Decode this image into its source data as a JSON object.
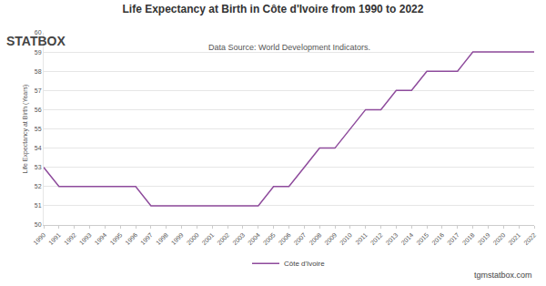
{
  "chart_data": {
    "type": "line",
    "title": "Life Expectancy at Birth in Côte d'Ivoire from 1990 to 2022",
    "subtitle": "Data Source: World Development Indicators.",
    "y_label": "Life Expectancy at Birth (Years)",
    "annotations": [
      "STATBOX",
      "tgmstatbox.com"
    ],
    "x": [
      1990,
      1991,
      1992,
      1993,
      1994,
      1995,
      1996,
      1997,
      1998,
      1999,
      2000,
      2001,
      2002,
      2003,
      2004,
      2005,
      2006,
      2007,
      2008,
      2009,
      2010,
      2011,
      2012,
      2013,
      2014,
      2015,
      2016,
      2017,
      2018,
      2019,
      2020,
      2021,
      2022
    ],
    "series": [
      {
        "name": "Côte d'Ivoire",
        "color": "#8e4b9c",
        "values": [
          53,
          52,
          52,
          52,
          52,
          52,
          52,
          51,
          51,
          51,
          51,
          51,
          51,
          51,
          51,
          52,
          52,
          53,
          54,
          54,
          55,
          56,
          56,
          57,
          57,
          58,
          58,
          58,
          59,
          59,
          59,
          59,
          59
        ]
      }
    ],
    "xlim": [
      1990,
      2022
    ],
    "xticks": [
      1990,
      1991,
      1992,
      1993,
      1994,
      1995,
      1996,
      1997,
      1998,
      1999,
      2000,
      2001,
      2002,
      2003,
      2004,
      2005,
      2006,
      2007,
      2008,
      2009,
      2010,
      2011,
      2012,
      2013,
      2014,
      2015,
      2016,
      2017,
      2018,
      2019,
      2020,
      2021,
      2022
    ],
    "ylim": [
      50,
      60
    ],
    "yticks": [
      50,
      51,
      52,
      53,
      54,
      55,
      56,
      57,
      58,
      59,
      60
    ],
    "grid": true,
    "legend": "bottom"
  }
}
